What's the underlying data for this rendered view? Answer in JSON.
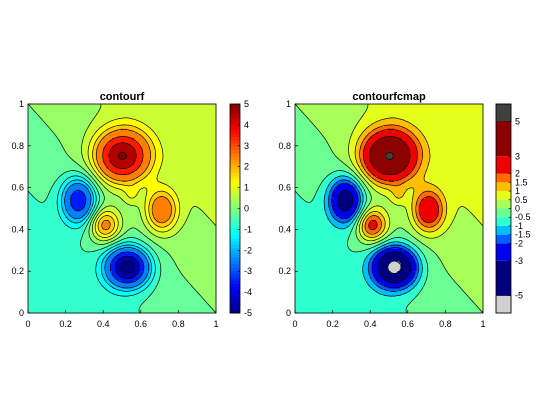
{
  "chart_data": [
    {
      "type": "filled-contour",
      "title": "contourf",
      "xlim": [
        0,
        1
      ],
      "ylim": [
        0,
        1
      ],
      "xticks": [
        "0",
        "0.2",
        "0.4",
        "0.6",
        "0.8",
        "1"
      ],
      "yticks": [
        "0",
        "0.2",
        "0.4",
        "0.6",
        "0.8",
        "1"
      ],
      "colorbar": {
        "lim": [
          -5,
          5
        ],
        "tick_values": [
          -5,
          -4,
          -3,
          -2,
          -1,
          0,
          1,
          2,
          3,
          4,
          5
        ],
        "tick_labels": [
          "-5",
          "-4",
          "-3",
          "-2",
          "-1",
          "0",
          "1",
          "2",
          "3",
          "4",
          "5"
        ],
        "colormap": "jet"
      },
      "contour_levels": [
        -5,
        -4,
        -3,
        -2,
        -1.5,
        -1,
        -0.5,
        0,
        0.5,
        1,
        1.5,
        2,
        3,
        4,
        5
      ],
      "peaks": [
        {
          "x": 0.5,
          "y": 0.75,
          "value": 4.8
        },
        {
          "x": 0.27,
          "y": 0.54,
          "value": -3.5
        },
        {
          "x": 0.53,
          "y": 0.22,
          "value": -5.2
        },
        {
          "x": 0.41,
          "y": 0.42,
          "value": 2.5
        },
        {
          "x": 0.71,
          "y": 0.49,
          "value": 2.6
        },
        {
          "x": 0.55,
          "y": 0.56,
          "value": 0.6
        }
      ],
      "background_field": "linear, about 0.5 at upper right, about -0.5 at lower left"
    },
    {
      "type": "filled-contour",
      "title": "contourfcmap",
      "xlim": [
        0,
        1
      ],
      "ylim": [
        0,
        1
      ],
      "xticks": [
        "0",
        "0.2",
        "0.4",
        "0.6",
        "0.8",
        "1"
      ],
      "yticks": [
        "0",
        "0.2",
        "0.4",
        "0.6",
        "0.8",
        "1"
      ],
      "colorbar": {
        "lim": [
          -6,
          6
        ],
        "tick_values": [
          -5,
          -3,
          -2,
          -1.5,
          -1,
          -0.5,
          0,
          0.5,
          1,
          1.5,
          2,
          3,
          5
        ],
        "tick_labels": [
          "-5",
          "-3",
          "-2",
          "-1.5",
          "-1",
          "-0.5",
          "0",
          "0.5",
          "1",
          "1.5",
          "2",
          "3",
          "5"
        ],
        "colormap": "discrete",
        "levels": [
          -5,
          -3,
          -2,
          -1.5,
          -1,
          -0.5,
          0,
          0.5,
          1,
          1.5,
          2,
          3,
          5
        ],
        "colors": [
          "#00007F",
          "#0000EE",
          "#005FFF",
          "#00BFFF",
          "#30FFCF",
          "#6BFF93",
          "#A7FF57",
          "#E3FF1B",
          "#FFBF00",
          "#FF6B00",
          "#EE0000",
          "#8B0000"
        ],
        "below_color": "#D0D0D0",
        "above_color": "#404040"
      },
      "peaks": [
        {
          "x": 0.5,
          "y": 0.75,
          "value": 4.8
        },
        {
          "x": 0.27,
          "y": 0.54,
          "value": -3.5
        },
        {
          "x": 0.53,
          "y": 0.22,
          "value": -5.2
        },
        {
          "x": 0.41,
          "y": 0.42,
          "value": 2.5
        },
        {
          "x": 0.71,
          "y": 0.49,
          "value": 2.6
        },
        {
          "x": 0.55,
          "y": 0.56,
          "value": 0.6
        }
      ],
      "background_field": "linear, about 0.5 at upper right, about -0.5 at lower left"
    }
  ]
}
